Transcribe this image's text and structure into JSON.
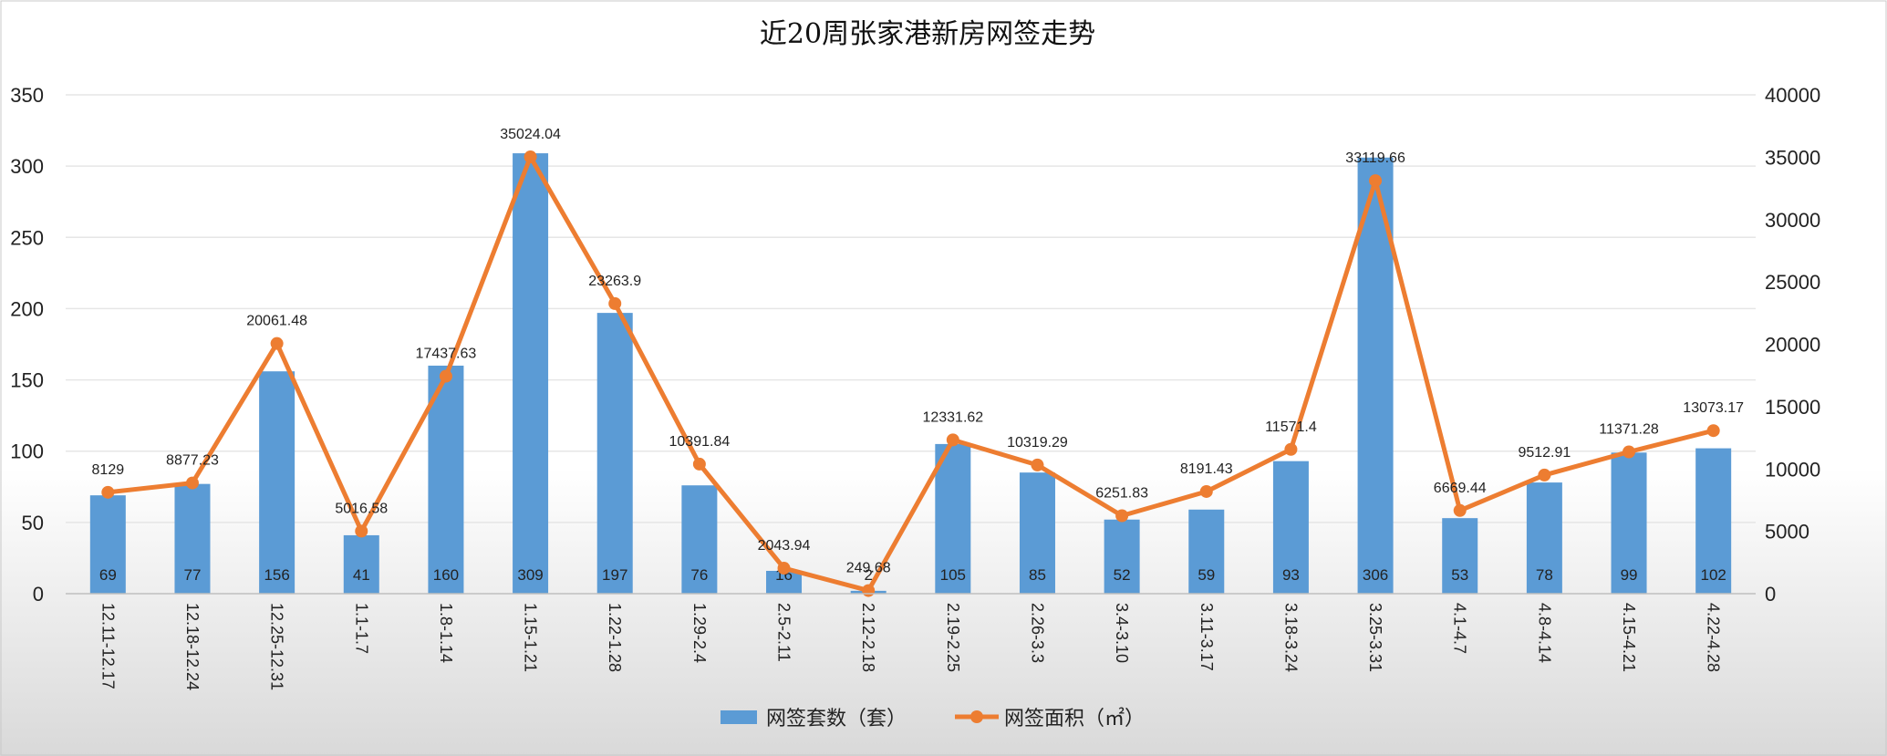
{
  "chart_data": {
    "type": "bar",
    "title": "近20周张家港新房网签走势",
    "categories": [
      "12.11-12.17",
      "12.18-12.24",
      "12.25-12.31",
      "1.1-1.7",
      "1.8-1.14",
      "1.15-1.21",
      "1.22-1.28",
      "1.29-2.4",
      "2.5-2.11",
      "2.12-2.18",
      "2.19-2.25",
      "2.26-3.3",
      "3.4-3.10",
      "3.11-3.17",
      "3.18-3.24",
      "3.25-3.31",
      "4.1-4.7",
      "4.8-4.14",
      "4.15-4.21",
      "4.22-4.28"
    ],
    "series": [
      {
        "name": "网签套数（套）",
        "type": "bar",
        "axis": "left",
        "color": "#5b9bd5",
        "values": [
          69,
          77,
          156,
          41,
          160,
          309,
          197,
          76,
          16,
          2,
          105,
          85,
          52,
          59,
          93,
          306,
          53,
          78,
          99,
          102
        ]
      },
      {
        "name": "网签面积（㎡）",
        "type": "line",
        "axis": "right",
        "color": "#ed7d31",
        "values": [
          8129,
          8877.23,
          20061.48,
          5016.58,
          17437.63,
          35024.04,
          23263.9,
          10391.84,
          2043.94,
          249.68,
          12331.62,
          10319.29,
          6251.83,
          8191.43,
          11571.4,
          33119.66,
          6669.44,
          9512.91,
          11371.28,
          13073.17
        ],
        "labels": [
          "8129",
          "8877.23",
          "20061.48",
          "5016.58",
          "17437.63",
          "35024.04",
          "23263.9",
          "10391.84",
          "2043.94",
          "249.68",
          "12331.62",
          "10319.29",
          "6251.83",
          "8191.43",
          "11571.4",
          "33119.66",
          "6669.44",
          "9512.91",
          "11371.28",
          "13073.17"
        ]
      }
    ],
    "y_left": {
      "min": 0,
      "max": 350,
      "ticks": [
        "0",
        "50",
        "100",
        "150",
        "200",
        "250",
        "300",
        "350"
      ]
    },
    "y_right": {
      "min": 0,
      "max": 40000,
      "ticks": [
        "0",
        "5000",
        "10000",
        "15000",
        "20000",
        "25000",
        "30000",
        "35000",
        "40000"
      ]
    },
    "grid": true,
    "legend_position": "bottom"
  }
}
